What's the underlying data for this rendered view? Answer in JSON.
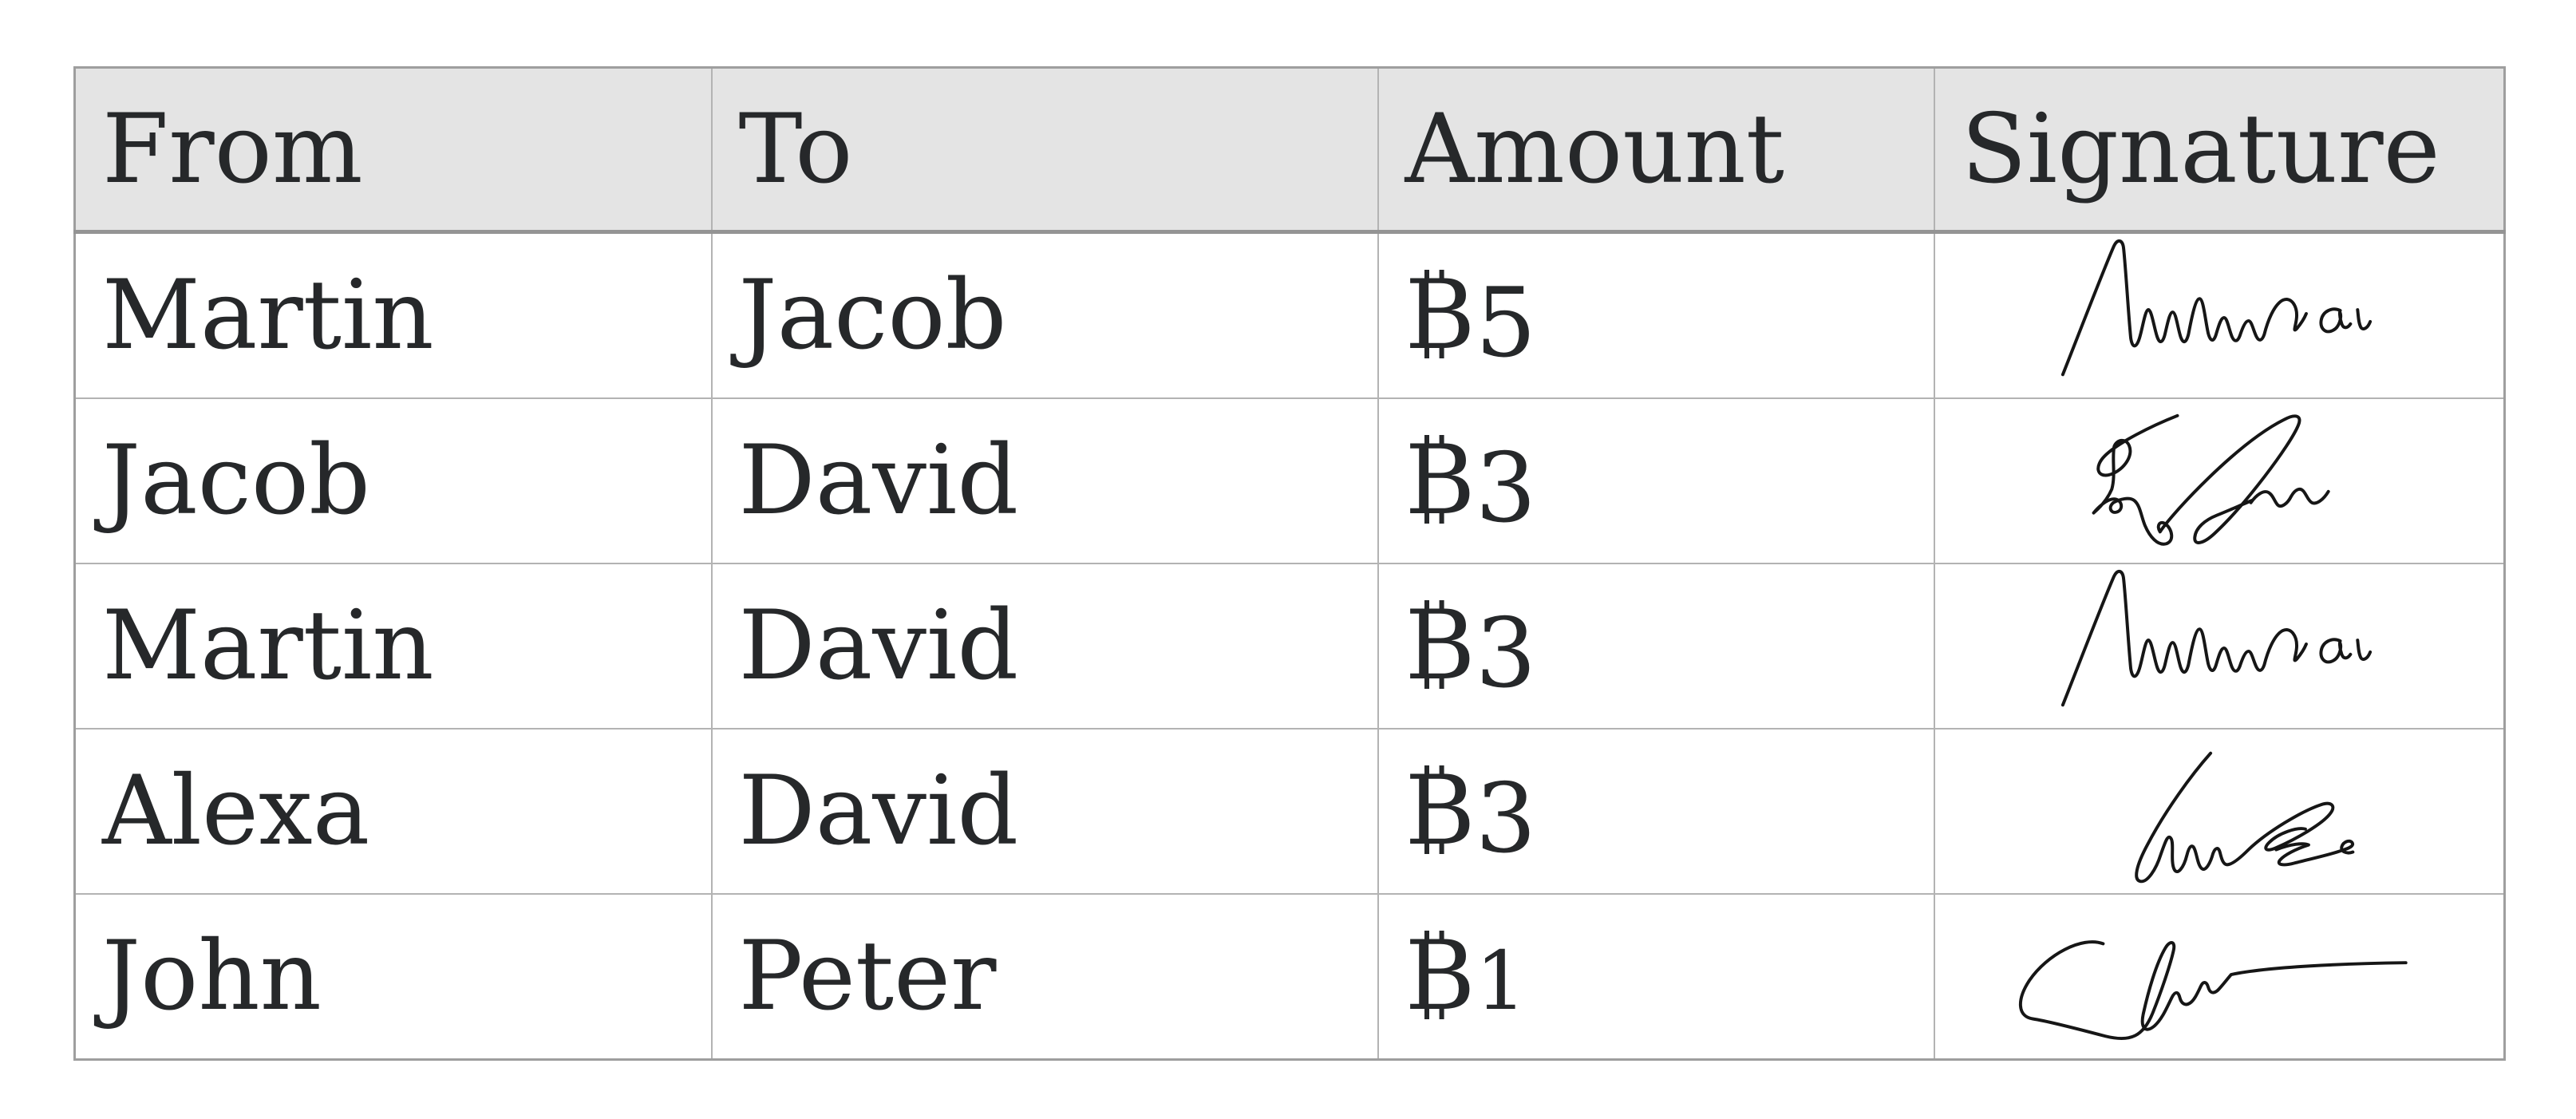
{
  "table": {
    "columns": [
      {
        "key": "from",
        "label": "From"
      },
      {
        "key": "to",
        "label": "To"
      },
      {
        "key": "amount",
        "label": "Amount"
      },
      {
        "key": "signature",
        "label": "Signature"
      }
    ],
    "rows": [
      {
        "from": "Martin",
        "to": "Jacob",
        "currency_symbol": "₿",
        "amount_value": "5",
        "amount_text": "₿5",
        "signature": "martin-signature"
      },
      {
        "from": "Jacob",
        "to": "David",
        "currency_symbol": "₿",
        "amount_value": "3",
        "amount_text": "₿3",
        "signature": "jacob-signature"
      },
      {
        "from": "Martin",
        "to": "David",
        "currency_symbol": "₿",
        "amount_value": "3",
        "amount_text": "₿3",
        "signature": "martin-signature"
      },
      {
        "from": "Alexa",
        "to": "David",
        "currency_symbol": "₿",
        "amount_value": "3",
        "amount_text": "₿3",
        "signature": "alexa-signature"
      },
      {
        "from": "John",
        "to": "Peter",
        "currency_symbol": "₿",
        "amount_value": "1",
        "amount_text": "₿1",
        "signature": "john-signature"
      }
    ],
    "colors": {
      "text": "#26282a",
      "header_bg": "#e4e4e4",
      "row_bg": "#ffffff",
      "border_outer": "#9e9e9e",
      "border_inner": "#b3b3b3",
      "header_rule": "#949494",
      "signature_ink": "#161616"
    }
  }
}
